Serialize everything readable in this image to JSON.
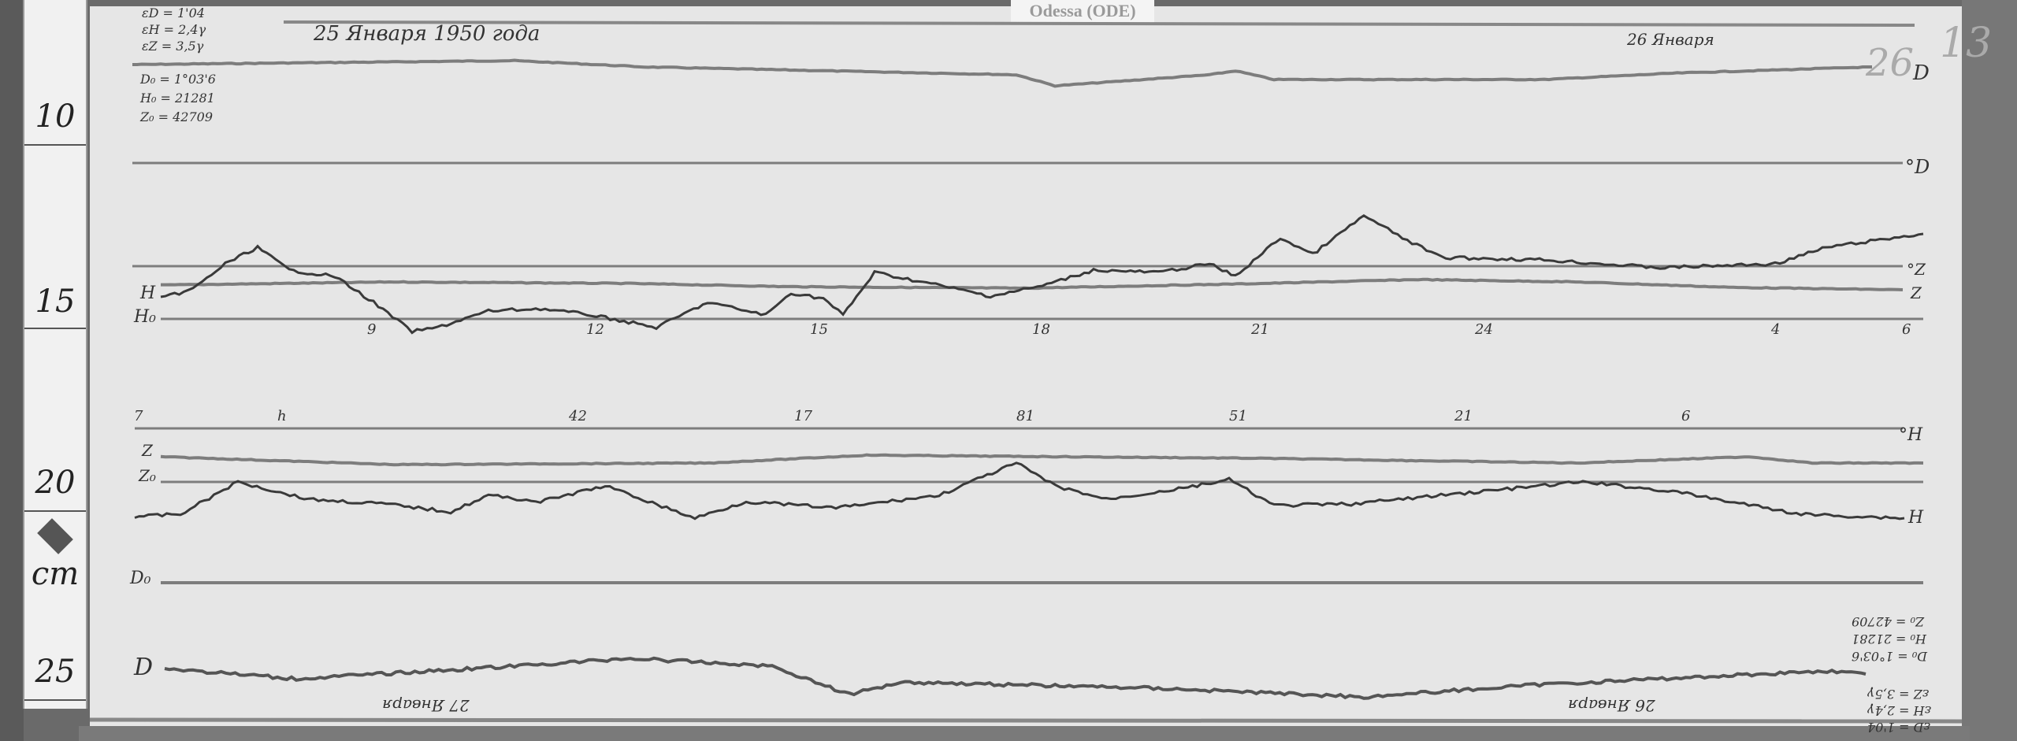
{
  "station_label": "Odessa (ODE)",
  "title_date": "25 Января 1950 года",
  "second_date": "26 Января",
  "scale_values": [
    "εD = 1'04",
    "εH = 2,4γ",
    "εZ = 3,5γ"
  ],
  "base_values": [
    "D₀ = 1°03'6",
    "H₀ = 21281",
    "Z₀ = 42709"
  ],
  "ruler": {
    "marks": [
      "10",
      "15",
      "20",
      "25"
    ],
    "unit": "cm"
  },
  "pencil_marks": [
    "26",
    "13"
  ],
  "trace_labels": {
    "D_top": "D",
    "D_base": "°D",
    "H": "H",
    "H0": "H₀",
    "Z_base_right": "°Z",
    "Z_right": "Z",
    "Z": "Z",
    "Z0": "Z₀",
    "D0": "D₀",
    "D_bottom": "D",
    "H_lower_base_right": "°H",
    "H_lower_right": "H"
  },
  "hour_labels": [
    "9",
    "12",
    "15",
    "18",
    "21",
    "24",
    "4",
    "6"
  ],
  "hour_labels_inverted": [
    "7",
    "h",
    "42",
    "17",
    "81",
    "51",
    "21",
    "6"
  ],
  "inverted_dates": [
    "27 Января",
    "26 Января"
  ],
  "inverted_values": [
    "Z₀ = 42709",
    "H₀ = 21281",
    "D₀ = 1°03'6",
    "εZ = 3,5γ",
    "εH = 2,4γ",
    "εD = 1'04"
  ],
  "colors": {
    "paper": "#e6e6e6",
    "trace_dark": "#3a3a3a",
    "trace_light": "#7d7d7d"
  }
}
